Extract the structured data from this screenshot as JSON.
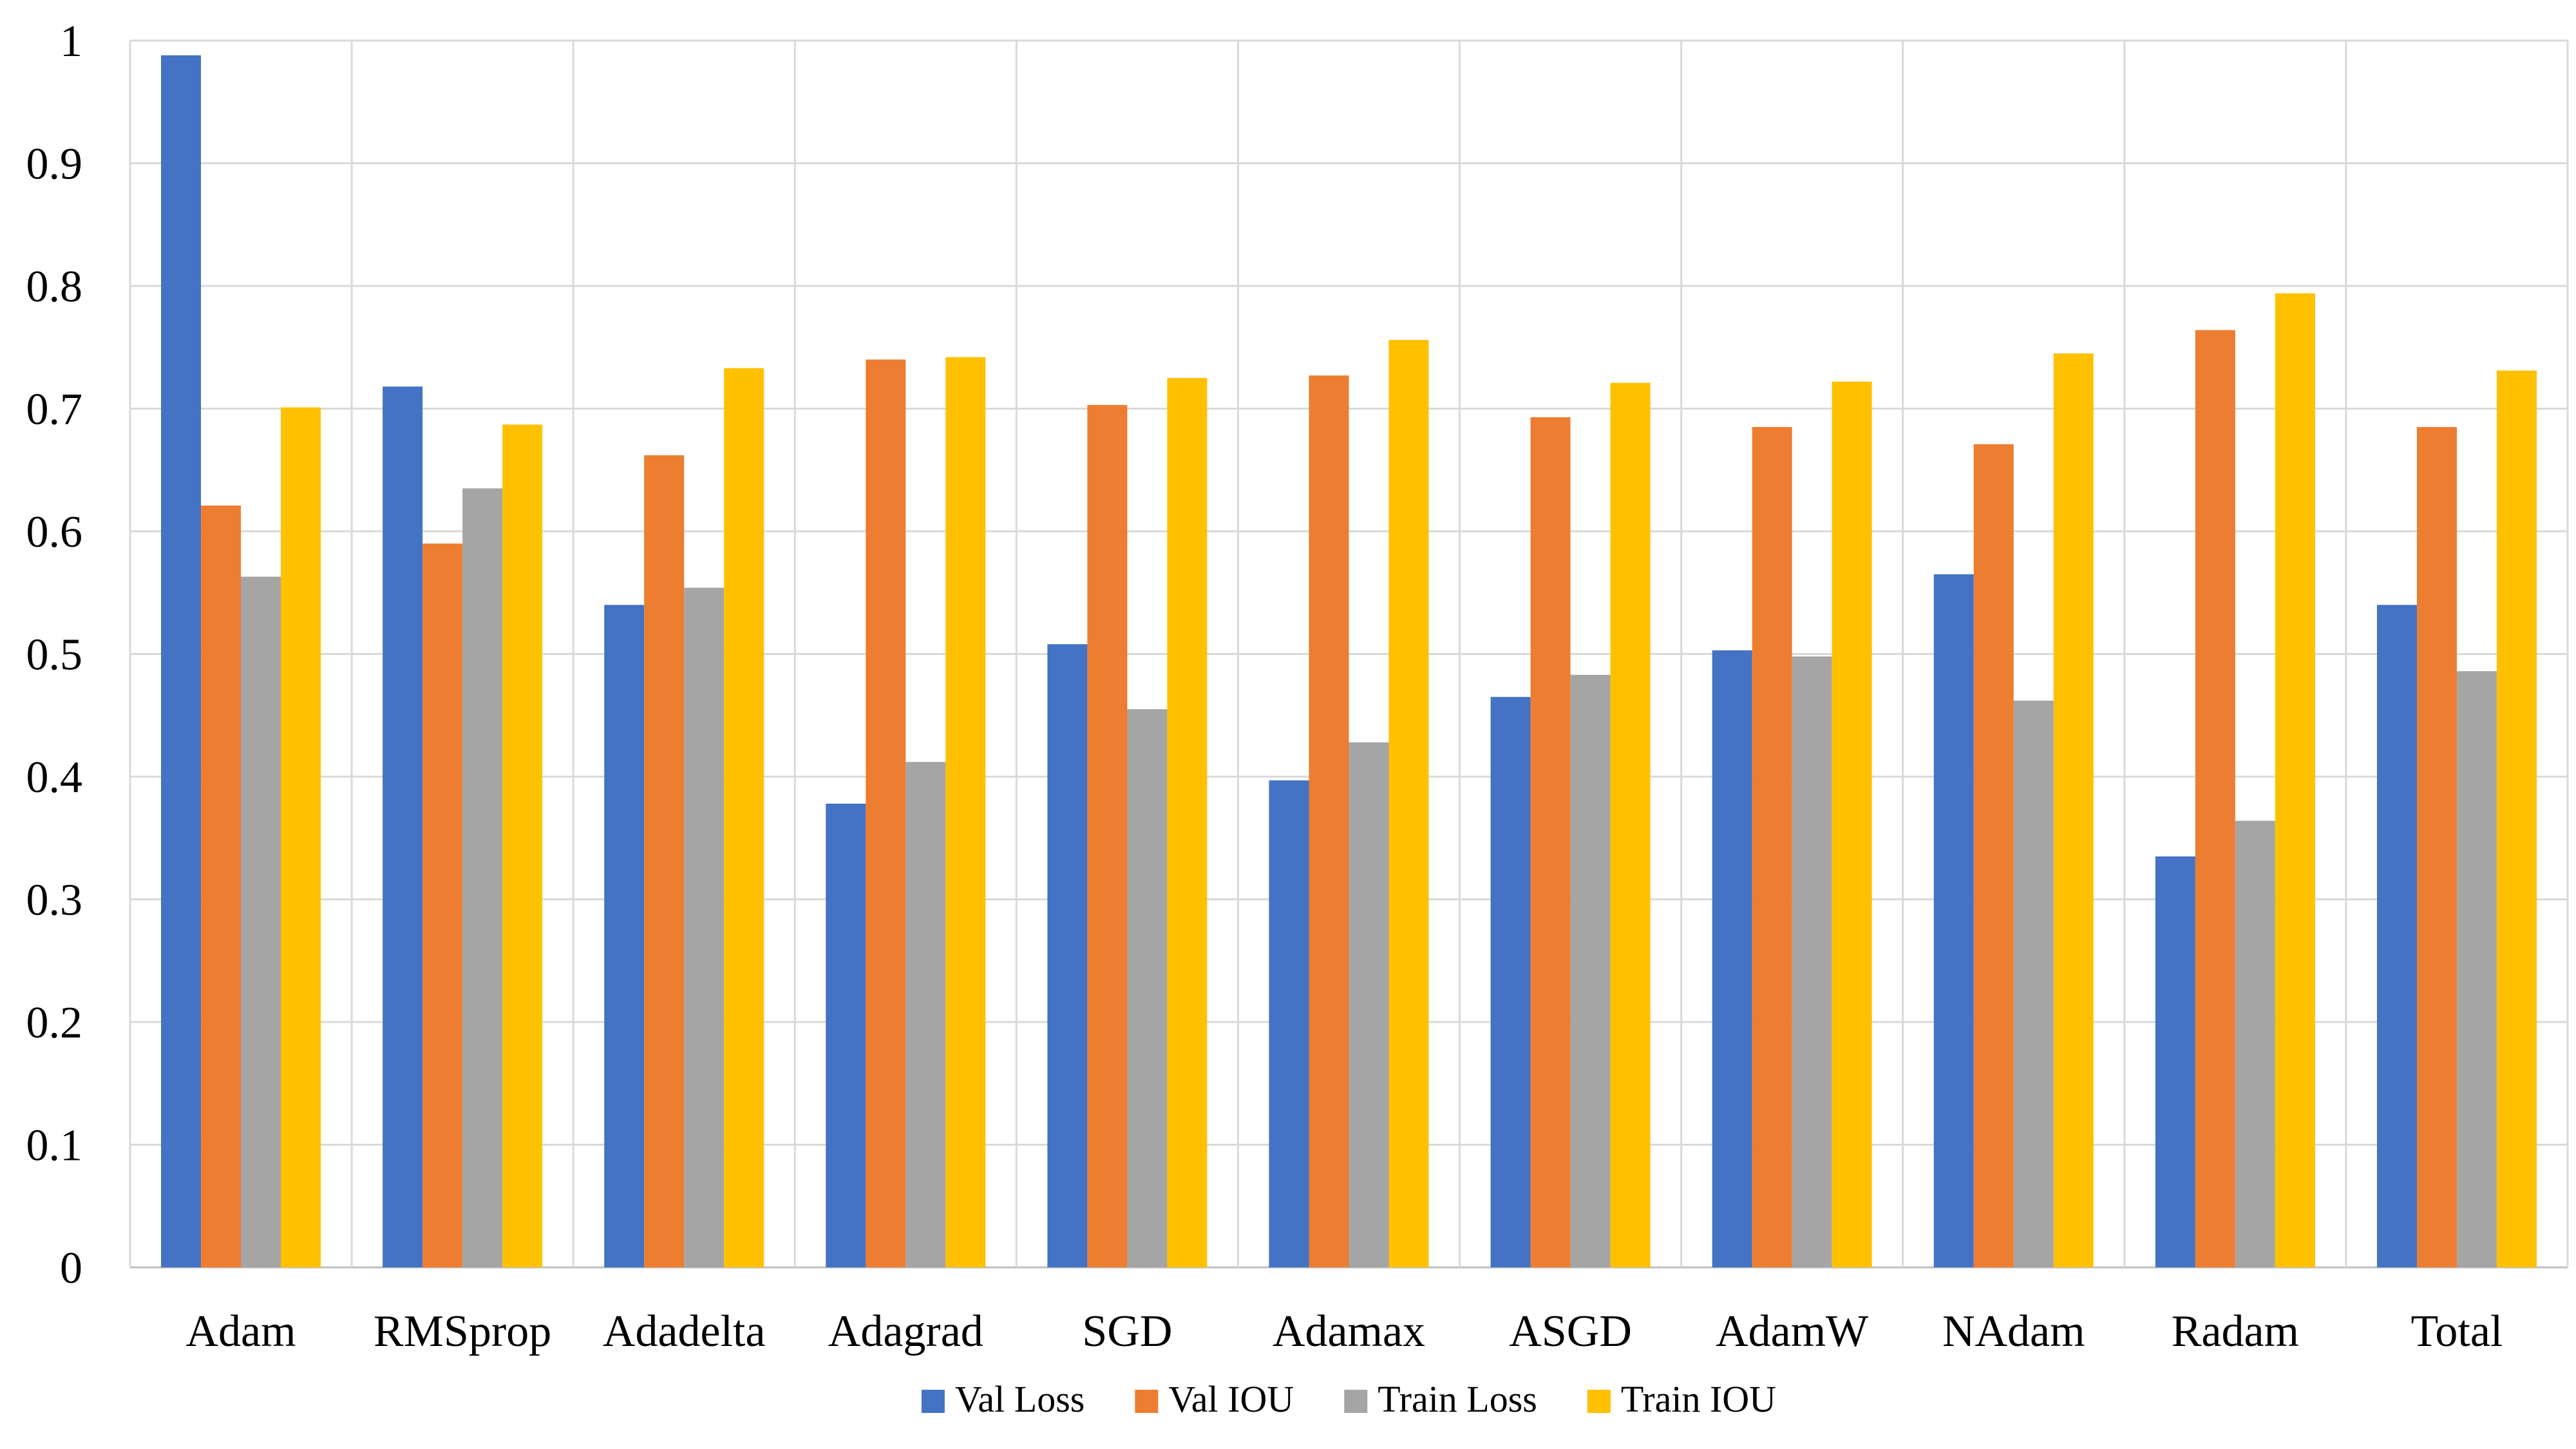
{
  "chart_data": {
    "type": "bar",
    "title": "",
    "xlabel": "",
    "ylabel": "",
    "ylim": [
      0,
      1
    ],
    "yticks": [
      "0",
      "0.1",
      "0.2",
      "0.3",
      "0.4",
      "0.5",
      "0.6",
      "0.7",
      "0.8",
      "0.9",
      "1"
    ],
    "grid": true,
    "legend_position": "bottom",
    "categories": [
      "Adam",
      "RMSprop",
      "Adadelta",
      "Adagrad",
      "SGD",
      "Adamax",
      "ASGD",
      "AdamW",
      "NAdam",
      "Radam",
      "Total"
    ],
    "series": [
      {
        "name": "Val Loss",
        "color": "#4472C4",
        "values": [
          0.988,
          0.718,
          0.54,
          0.378,
          0.508,
          0.397,
          0.465,
          0.503,
          0.565,
          0.335,
          0.54
        ]
      },
      {
        "name": "Val IOU",
        "color": "#ED7D31",
        "values": [
          0.621,
          0.59,
          0.662,
          0.74,
          0.703,
          0.727,
          0.693,
          0.685,
          0.671,
          0.764,
          0.685
        ]
      },
      {
        "name": "Train Loss",
        "color": "#A5A5A5",
        "values": [
          0.563,
          0.635,
          0.554,
          0.412,
          0.455,
          0.428,
          0.483,
          0.498,
          0.462,
          0.364,
          0.486
        ]
      },
      {
        "name": "Train IOU",
        "color": "#FFC000",
        "values": [
          0.701,
          0.687,
          0.733,
          0.742,
          0.725,
          0.756,
          0.721,
          0.722,
          0.745,
          0.794,
          0.731
        ]
      }
    ]
  }
}
